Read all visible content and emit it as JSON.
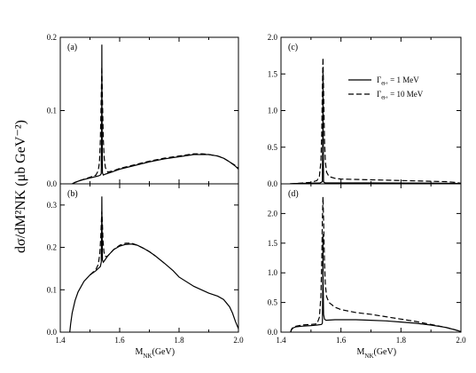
{
  "ylabel": "dσ/dM²NK (μb GeV⁻²)",
  "chart_data": [
    {
      "panel": "(a)",
      "type": "line",
      "xlabel": "",
      "xlim": [
        1.4,
        2.0
      ],
      "ylim": [
        0.0,
        0.2
      ],
      "yticks": [
        "0.0",
        "0.1",
        "0.2"
      ],
      "series": [
        {
          "style": "solid",
          "x": [
            1.44,
            1.45,
            1.47,
            1.5,
            1.52,
            1.53,
            1.535,
            1.538,
            1.5395,
            1.54,
            1.5405,
            1.542,
            1.545,
            1.55,
            1.58,
            1.6,
            1.65,
            1.7,
            1.75,
            1.8,
            1.85,
            1.88,
            1.9,
            1.93,
            1.95,
            1.97,
            1.99,
            2.0
          ],
          "y": [
            0.0,
            0.002,
            0.005,
            0.008,
            0.01,
            0.011,
            0.012,
            0.014,
            0.1,
            0.19,
            0.1,
            0.015,
            0.012,
            0.013,
            0.017,
            0.02,
            0.025,
            0.03,
            0.034,
            0.037,
            0.04,
            0.04,
            0.04,
            0.038,
            0.035,
            0.03,
            0.024,
            0.02
          ]
        },
        {
          "style": "dashed",
          "x": [
            1.44,
            1.45,
            1.47,
            1.5,
            1.52,
            1.528,
            1.532,
            1.535,
            1.538,
            1.54,
            1.542,
            1.545,
            1.548,
            1.552,
            1.56,
            1.58,
            1.6,
            1.65,
            1.7,
            1.75,
            1.8,
            1.85,
            1.88,
            1.9,
            1.93,
            1.95,
            1.97,
            1.99,
            2.0
          ],
          "y": [
            0.0,
            0.002,
            0.005,
            0.009,
            0.012,
            0.018,
            0.03,
            0.06,
            0.12,
            0.16,
            0.115,
            0.06,
            0.035,
            0.022,
            0.016,
            0.018,
            0.021,
            0.026,
            0.031,
            0.035,
            0.038,
            0.041,
            0.041,
            0.04,
            0.038,
            0.035,
            0.03,
            0.025,
            0.021
          ]
        }
      ]
    },
    {
      "panel": "(b)",
      "type": "line",
      "xlabel": "M_NK (GeV)",
      "xlim": [
        1.4,
        2.0
      ],
      "ylim": [
        0.0,
        0.35
      ],
      "yticks": [
        "0.0",
        "0.1",
        "0.2",
        "0.3"
      ],
      "xticks": [
        "1.4",
        "1.6",
        "1.8",
        "2.0"
      ],
      "series": [
        {
          "style": "solid",
          "x": [
            1.432,
            1.435,
            1.44,
            1.45,
            1.46,
            1.48,
            1.5,
            1.52,
            1.535,
            1.538,
            1.5395,
            1.54,
            1.5405,
            1.542,
            1.545,
            1.55,
            1.56,
            1.58,
            1.6,
            1.62,
            1.64,
            1.66,
            1.68,
            1.7,
            1.72,
            1.75,
            1.78,
            1.8,
            1.85,
            1.9,
            1.93,
            1.95,
            1.97,
            1.98,
            1.99,
            2.0
          ],
          "y": [
            0.0,
            0.02,
            0.045,
            0.075,
            0.095,
            0.12,
            0.135,
            0.145,
            0.155,
            0.165,
            0.26,
            0.32,
            0.26,
            0.17,
            0.165,
            0.17,
            0.18,
            0.195,
            0.203,
            0.207,
            0.208,
            0.205,
            0.198,
            0.19,
            0.18,
            0.163,
            0.145,
            0.13,
            0.108,
            0.092,
            0.085,
            0.077,
            0.06,
            0.045,
            0.025,
            0.008
          ]
        },
        {
          "style": "dashed",
          "x": [
            1.5,
            1.52,
            1.528,
            1.533,
            1.536,
            1.538,
            1.54,
            1.542,
            1.544,
            1.547,
            1.55,
            1.555,
            1.56,
            1.58,
            1.6,
            1.62,
            1.64,
            1.66,
            1.68,
            1.7,
            1.72
          ],
          "y": [
            0.135,
            0.148,
            0.16,
            0.185,
            0.22,
            0.255,
            0.285,
            0.255,
            0.215,
            0.19,
            0.18,
            0.178,
            0.18,
            0.195,
            0.205,
            0.21,
            0.21,
            0.205,
            0.198,
            0.19,
            0.18
          ]
        }
      ]
    },
    {
      "panel": "(c)",
      "type": "line",
      "xlabel": "",
      "xlim": [
        1.4,
        2.0
      ],
      "ylim": [
        0.0,
        2.0
      ],
      "yticks": [
        "0.0",
        "0.5",
        "1.0",
        "1.5",
        "2.0"
      ],
      "series": [
        {
          "name": "Γ_Θ+ = 1 MeV",
          "style": "solid",
          "x": [
            1.43,
            1.45,
            1.5,
            1.53,
            1.538,
            1.5395,
            1.54,
            1.5405,
            1.542,
            1.545,
            1.55,
            1.6,
            1.7,
            1.8,
            1.9,
            1.95,
            1.98,
            2.0
          ],
          "y": [
            0.0,
            0.005,
            0.01,
            0.012,
            0.03,
            0.8,
            1.55,
            0.8,
            0.03,
            0.015,
            0.012,
            0.012,
            0.012,
            0.011,
            0.01,
            0.008,
            0.006,
            0.002
          ]
        },
        {
          "name": "Γ_Θ+ = 10 MeV",
          "style": "dashed",
          "x": [
            1.43,
            1.45,
            1.5,
            1.52,
            1.528,
            1.533,
            1.536,
            1.538,
            1.54,
            1.542,
            1.545,
            1.548,
            1.552,
            1.56,
            1.58,
            1.6,
            1.7,
            1.8,
            1.9,
            1.95,
            1.98,
            2.0
          ],
          "y": [
            0.0,
            0.005,
            0.02,
            0.045,
            0.1,
            0.3,
            0.7,
            1.3,
            1.72,
            1.3,
            0.6,
            0.3,
            0.16,
            0.1,
            0.075,
            0.065,
            0.055,
            0.045,
            0.035,
            0.03,
            0.02,
            0.008
          ]
        }
      ],
      "legend_position": "top-right"
    },
    {
      "panel": "(d)",
      "type": "line",
      "xlabel": "M_NK (GeV)",
      "xlim": [
        1.4,
        2.0
      ],
      "ylim": [
        0.0,
        2.5
      ],
      "yticks": [
        "0.0",
        "0.5",
        "1.0",
        "1.5",
        "2.0"
      ],
      "xticks": [
        "1.4",
        "1.6",
        "1.8",
        "2.0"
      ],
      "series": [
        {
          "style": "solid",
          "x": [
            1.432,
            1.435,
            1.44,
            1.45,
            1.47,
            1.5,
            1.52,
            1.535,
            1.538,
            1.5395,
            1.54,
            1.5405,
            1.542,
            1.545,
            1.55,
            1.58,
            1.6,
            1.65,
            1.7,
            1.75,
            1.8,
            1.85,
            1.9,
            1.95,
            1.98,
            2.0
          ],
          "y": [
            0.0,
            0.04,
            0.07,
            0.09,
            0.1,
            0.11,
            0.12,
            0.13,
            0.15,
            0.9,
            1.65,
            0.9,
            0.3,
            0.22,
            0.2,
            0.21,
            0.21,
            0.21,
            0.2,
            0.19,
            0.17,
            0.15,
            0.12,
            0.08,
            0.04,
            0.01
          ]
        },
        {
          "style": "dashed",
          "x": [
            1.432,
            1.435,
            1.44,
            1.45,
            1.47,
            1.5,
            1.52,
            1.528,
            1.533,
            1.536,
            1.538,
            1.54,
            1.542,
            1.545,
            1.548,
            1.552,
            1.56,
            1.58,
            1.6,
            1.65,
            1.7,
            1.75,
            1.8,
            1.85,
            1.9,
            1.95,
            1.98,
            2.0
          ],
          "y": [
            0.0,
            0.05,
            0.08,
            0.1,
            0.12,
            0.13,
            0.14,
            0.25,
            0.6,
            1.2,
            1.9,
            2.28,
            1.9,
            1.2,
            0.8,
            0.6,
            0.5,
            0.42,
            0.38,
            0.33,
            0.3,
            0.26,
            0.22,
            0.18,
            0.13,
            0.08,
            0.04,
            0.01
          ]
        }
      ]
    }
  ]
}
